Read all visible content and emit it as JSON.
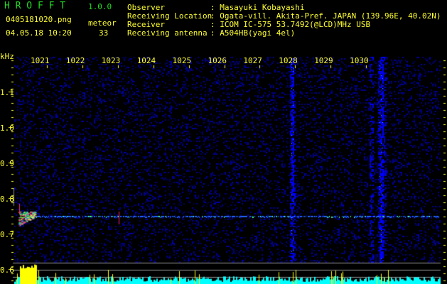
{
  "header": {
    "app_title": "H R O F F T",
    "version": "1.0.0",
    "filename": "0405181020.png",
    "datetime": "04.05.18 10:20",
    "meteor_label": "meteor",
    "meteor_count": "33"
  },
  "info": [
    {
      "label": "Observer",
      "value": ": Masayuki Kobayashi"
    },
    {
      "label": "Receiving Location",
      "value": ": Ogata-vill. Akita-Pref. JAPAN (139.96E, 40.02N)"
    },
    {
      "label": "Receiver",
      "value": ": ICOM IC-575 53.7492(@LCD)MHz USB"
    },
    {
      "label": "Receiving antenna",
      "value": ": A504HB(yagi 4el)"
    }
  ],
  "axis": {
    "unit": "kHz",
    "y_labels": [
      "1.1",
      "1.0",
      "0.9",
      "0.8",
      "0.7",
      "0.6"
    ],
    "x_labels": [
      "1021",
      "1022",
      "1023",
      "1024",
      "1025",
      "1026",
      "1027",
      "1028",
      "1029",
      "1030"
    ]
  },
  "colors": {
    "text": "#ffff33",
    "title": "#22dd22",
    "noise": "#1010c0",
    "echo_line": "#2060ff",
    "histogram": "#00ffff",
    "histogram_peak": "#ffff00"
  }
}
